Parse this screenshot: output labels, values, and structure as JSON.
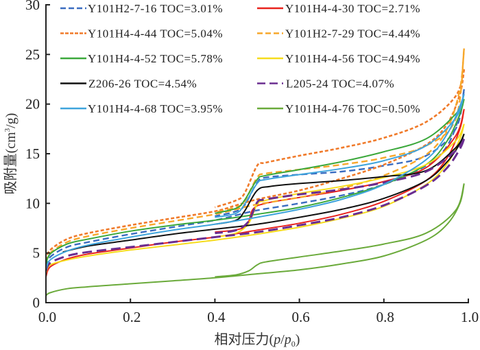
{
  "chart_data": {
    "type": "line",
    "title": "",
    "xlabel": "相对压力(p/p0)",
    "xlabel_parts": {
      "prefix": "相对压力(",
      "p": "p",
      "slash": "/",
      "p0": "p",
      "sub": "0",
      "suffix": ")"
    },
    "ylabel": "吸附量(cm3/g)",
    "ylabel_parts": {
      "prefix": "吸附量(cm",
      "sup": "3",
      "suffix": "/g)"
    },
    "xlim": [
      0,
      1.0
    ],
    "ylim": [
      0,
      30
    ],
    "xticks": [
      "0.0",
      "0.2",
      "0.4",
      "0.6",
      "0.8",
      "1.0"
    ],
    "xtick_values": [
      0,
      0.2,
      0.4,
      0.6,
      0.8,
      1.0
    ],
    "yticks": [
      "0",
      "5",
      "10",
      "15",
      "20",
      "25",
      "30"
    ],
    "ytick_values": [
      0,
      5,
      10,
      15,
      20,
      25,
      30
    ],
    "grid": false,
    "legend_position": "top",
    "series": [
      {
        "name": "Y101H2-7-16  TOC=3.01%",
        "color": "#3a6cc0",
        "dash": "dashed",
        "adsorption": [
          [
            0,
            3.6
          ],
          [
            0.01,
            4.6
          ],
          [
            0.05,
            5.6
          ],
          [
            0.1,
            6.1
          ],
          [
            0.2,
            6.9
          ],
          [
            0.3,
            7.6
          ],
          [
            0.4,
            8.3
          ],
          [
            0.45,
            8.8
          ],
          [
            0.5,
            9.3
          ],
          [
            0.6,
            10.0
          ],
          [
            0.7,
            10.8
          ],
          [
            0.8,
            11.9
          ],
          [
            0.9,
            13.8
          ],
          [
            0.95,
            15.8
          ],
          [
            0.98,
            19.0
          ],
          [
            0.99,
            21.5
          ]
        ],
        "desorption": [
          [
            0.99,
            21.5
          ],
          [
            0.97,
            17.5
          ],
          [
            0.9,
            14.8
          ],
          [
            0.8,
            13.8
          ],
          [
            0.7,
            13.2
          ],
          [
            0.6,
            12.9
          ],
          [
            0.52,
            12.6
          ],
          [
            0.5,
            12.1
          ],
          [
            0.47,
            9.8
          ],
          [
            0.45,
            9.2
          ],
          [
            0.4,
            8.7
          ]
        ]
      },
      {
        "name": "Y101H4-4-30  TOC=2.71%",
        "color": "#e8221c",
        "dash": "solid",
        "adsorption": [
          [
            0,
            2.6
          ],
          [
            0.01,
            3.6
          ],
          [
            0.05,
            4.4
          ],
          [
            0.1,
            4.9
          ],
          [
            0.2,
            5.5
          ],
          [
            0.3,
            6.1
          ],
          [
            0.4,
            6.6
          ],
          [
            0.5,
            7.3
          ],
          [
            0.6,
            8.0
          ],
          [
            0.7,
            8.9
          ],
          [
            0.8,
            10.2
          ],
          [
            0.9,
            12.3
          ],
          [
            0.95,
            14.6
          ],
          [
            0.98,
            17.5
          ],
          [
            0.99,
            19.5
          ]
        ],
        "desorption": [
          [
            0.99,
            19.5
          ],
          [
            0.97,
            16.8
          ],
          [
            0.9,
            13.6
          ],
          [
            0.8,
            12.2
          ],
          [
            0.7,
            11.3
          ],
          [
            0.6,
            10.6
          ],
          [
            0.52,
            10.0
          ],
          [
            0.49,
            9.4
          ],
          [
            0.47,
            7.6
          ],
          [
            0.4,
            7.1
          ]
        ]
      },
      {
        "name": "Y101H4-4-44  TOC=5.04%",
        "color": "#f07a2a",
        "dash": "dotted",
        "adsorption": [
          [
            0,
            4.3
          ],
          [
            0.01,
            5.3
          ],
          [
            0.05,
            6.4
          ],
          [
            0.1,
            7.0
          ],
          [
            0.2,
            7.8
          ],
          [
            0.3,
            8.5
          ],
          [
            0.4,
            9.2
          ],
          [
            0.45,
            9.8
          ],
          [
            0.5,
            10.4
          ],
          [
            0.6,
            11.3
          ],
          [
            0.7,
            12.5
          ],
          [
            0.8,
            13.9
          ],
          [
            0.9,
            15.9
          ],
          [
            0.95,
            18.0
          ],
          [
            0.98,
            21.0
          ],
          [
            0.99,
            23.5
          ]
        ],
        "desorption": [
          [
            0.99,
            23.5
          ],
          [
            0.97,
            20.8
          ],
          [
            0.9,
            18.2
          ],
          [
            0.8,
            16.6
          ],
          [
            0.7,
            15.6
          ],
          [
            0.6,
            14.8
          ],
          [
            0.52,
            14.1
          ],
          [
            0.5,
            13.8
          ],
          [
            0.47,
            11.0
          ],
          [
            0.45,
            10.3
          ],
          [
            0.4,
            9.6
          ]
        ]
      },
      {
        "name": "Y101H2-7-29  TOC=4.44%",
        "color": "#f7a72b",
        "dash": "dashed",
        "adsorption": [
          [
            0,
            4.0
          ],
          [
            0.01,
            5.0
          ],
          [
            0.05,
            6.1
          ],
          [
            0.1,
            6.7
          ],
          [
            0.2,
            7.5
          ],
          [
            0.3,
            8.2
          ],
          [
            0.4,
            8.9
          ],
          [
            0.45,
            9.4
          ],
          [
            0.5,
            9.9
          ],
          [
            0.6,
            10.6
          ],
          [
            0.7,
            11.5
          ],
          [
            0.8,
            12.8
          ],
          [
            0.9,
            14.9
          ],
          [
            0.95,
            17.5
          ],
          [
            0.98,
            21.5
          ],
          [
            0.99,
            25.6
          ]
        ],
        "desorption": [
          [
            0.99,
            25.6
          ],
          [
            0.97,
            18.5
          ],
          [
            0.9,
            15.8
          ],
          [
            0.8,
            14.6
          ],
          [
            0.7,
            13.9
          ],
          [
            0.6,
            13.4
          ],
          [
            0.52,
            13.0
          ],
          [
            0.5,
            12.6
          ],
          [
            0.47,
            10.2
          ],
          [
            0.45,
            9.6
          ],
          [
            0.4,
            9.1
          ]
        ]
      },
      {
        "name": "Y101H4-4-52  TOC=5.78%",
        "color": "#3ba83b",
        "dash": "solid",
        "adsorption": [
          [
            0,
            3.8
          ],
          [
            0.01,
            4.9
          ],
          [
            0.05,
            5.9
          ],
          [
            0.1,
            6.4
          ],
          [
            0.2,
            7.2
          ],
          [
            0.3,
            7.8
          ],
          [
            0.4,
            8.3
          ],
          [
            0.5,
            8.9
          ],
          [
            0.6,
            9.6
          ],
          [
            0.7,
            10.6
          ],
          [
            0.8,
            11.9
          ],
          [
            0.9,
            13.9
          ],
          [
            0.95,
            16.3
          ],
          [
            0.98,
            19.0
          ],
          [
            0.99,
            20.5
          ]
        ],
        "desorption": [
          [
            0.99,
            20.5
          ],
          [
            0.97,
            19.0
          ],
          [
            0.9,
            16.5
          ],
          [
            0.8,
            15.2
          ],
          [
            0.7,
            14.2
          ],
          [
            0.6,
            13.4
          ],
          [
            0.52,
            12.8
          ],
          [
            0.5,
            12.4
          ],
          [
            0.47,
            10.3
          ],
          [
            0.45,
            9.5
          ],
          [
            0.4,
            9.0
          ]
        ]
      },
      {
        "name": "Y101H4-4-56  TOC=4.94%",
        "color": "#f6dc1c",
        "dash": "solid",
        "adsorption": [
          [
            0,
            3.0
          ],
          [
            0.01,
            3.8
          ],
          [
            0.05,
            4.3
          ],
          [
            0.1,
            4.7
          ],
          [
            0.2,
            5.3
          ],
          [
            0.3,
            5.8
          ],
          [
            0.4,
            6.3
          ],
          [
            0.5,
            6.9
          ],
          [
            0.6,
            7.6
          ],
          [
            0.7,
            8.5
          ],
          [
            0.8,
            9.7
          ],
          [
            0.9,
            11.9
          ],
          [
            0.95,
            14.0
          ],
          [
            0.98,
            16.5
          ],
          [
            0.99,
            18.0
          ]
        ],
        "desorption": [
          [
            0.99,
            18.0
          ],
          [
            0.97,
            16.3
          ],
          [
            0.9,
            13.9
          ],
          [
            0.8,
            12.6
          ],
          [
            0.7,
            11.7
          ],
          [
            0.6,
            11.0
          ],
          [
            0.52,
            10.3
          ],
          [
            0.5,
            9.9
          ],
          [
            0.48,
            8.0
          ],
          [
            0.45,
            7.0
          ],
          [
            0.4,
            6.6
          ]
        ]
      },
      {
        "name": "Z206-26  TOC=4.54%",
        "color": "#111111",
        "dash": "solid",
        "adsorption": [
          [
            0.04,
            5.1
          ],
          [
            0.1,
            5.7
          ],
          [
            0.2,
            6.3
          ],
          [
            0.3,
            6.9
          ],
          [
            0.4,
            7.4
          ],
          [
            0.5,
            7.9
          ],
          [
            0.6,
            8.6
          ],
          [
            0.7,
            9.4
          ],
          [
            0.8,
            10.5
          ],
          [
            0.9,
            12.3
          ],
          [
            0.95,
            14.2
          ],
          [
            0.98,
            16.0
          ],
          [
            0.99,
            17.0
          ]
        ],
        "desorption": [
          [
            0.99,
            17.0
          ],
          [
            0.97,
            15.6
          ],
          [
            0.9,
            13.3
          ],
          [
            0.8,
            12.7
          ],
          [
            0.7,
            12.3
          ],
          [
            0.6,
            12.0
          ],
          [
            0.53,
            11.7
          ],
          [
            0.5,
            11.3
          ],
          [
            0.47,
            9.2
          ],
          [
            0.45,
            8.3
          ],
          [
            0.4,
            7.9
          ]
        ]
      },
      {
        "name": "L205-24  TOC=4.07%",
        "color": "#6a2d90",
        "dash": "longdash",
        "adsorption": [
          [
            0,
            3.2
          ],
          [
            0.01,
            4.0
          ],
          [
            0.05,
            4.7
          ],
          [
            0.1,
            5.1
          ],
          [
            0.2,
            5.6
          ],
          [
            0.3,
            6.1
          ],
          [
            0.4,
            6.6
          ],
          [
            0.5,
            7.1
          ],
          [
            0.6,
            7.8
          ],
          [
            0.7,
            8.6
          ],
          [
            0.8,
            9.8
          ],
          [
            0.9,
            11.8
          ],
          [
            0.95,
            13.6
          ],
          [
            0.98,
            15.5
          ],
          [
            0.99,
            16.5
          ]
        ],
        "desorption": [
          [
            0.99,
            16.5
          ],
          [
            0.97,
            15.3
          ],
          [
            0.9,
            13.2
          ],
          [
            0.8,
            12.1
          ],
          [
            0.7,
            11.4
          ],
          [
            0.6,
            10.9
          ],
          [
            0.52,
            10.4
          ],
          [
            0.5,
            10.1
          ],
          [
            0.48,
            8.2
          ],
          [
            0.45,
            7.3
          ],
          [
            0.4,
            7.0
          ]
        ]
      },
      {
        "name": "Y101H4-4-68  TOC=3.95%",
        "color": "#3ea4dc",
        "dash": "solid",
        "adsorption": [
          [
            0,
            3.3
          ],
          [
            0.01,
            4.3
          ],
          [
            0.05,
            5.2
          ],
          [
            0.1,
            5.8
          ],
          [
            0.2,
            6.6
          ],
          [
            0.3,
            7.3
          ],
          [
            0.4,
            7.9
          ],
          [
            0.5,
            8.6
          ],
          [
            0.6,
            9.4
          ],
          [
            0.7,
            10.4
          ],
          [
            0.8,
            11.9
          ],
          [
            0.9,
            14.4
          ],
          [
            0.95,
            17.0
          ],
          [
            0.98,
            19.8
          ],
          [
            0.99,
            21.0
          ]
        ],
        "desorption": [
          [
            0.99,
            21.0
          ],
          [
            0.97,
            18.6
          ],
          [
            0.9,
            15.8
          ],
          [
            0.8,
            14.3
          ],
          [
            0.7,
            13.5
          ],
          [
            0.6,
            12.9
          ],
          [
            0.52,
            12.4
          ],
          [
            0.5,
            12.0
          ],
          [
            0.47,
            9.9
          ],
          [
            0.45,
            9.0
          ],
          [
            0.4,
            8.6
          ]
        ]
      },
      {
        "name": "Y101H4-4-76  TOC=0.50%",
        "color": "#6aaa3a",
        "dash": "solid",
        "adsorption": [
          [
            0,
            0.7
          ],
          [
            0.01,
            1.0
          ],
          [
            0.05,
            1.4
          ],
          [
            0.1,
            1.6
          ],
          [
            0.2,
            1.9
          ],
          [
            0.3,
            2.2
          ],
          [
            0.4,
            2.5
          ],
          [
            0.5,
            2.9
          ],
          [
            0.6,
            3.3
          ],
          [
            0.7,
            3.9
          ],
          [
            0.8,
            4.7
          ],
          [
            0.9,
            6.3
          ],
          [
            0.95,
            7.9
          ],
          [
            0.98,
            10.0
          ],
          [
            0.99,
            12.0
          ]
        ],
        "desorption": [
          [
            0.99,
            12.0
          ],
          [
            0.97,
            9.3
          ],
          [
            0.9,
            7.0
          ],
          [
            0.8,
            5.9
          ],
          [
            0.7,
            5.2
          ],
          [
            0.6,
            4.6
          ],
          [
            0.52,
            4.1
          ],
          [
            0.5,
            3.8
          ],
          [
            0.48,
            3.2
          ],
          [
            0.45,
            2.8
          ],
          [
            0.4,
            2.6
          ]
        ]
      }
    ]
  }
}
